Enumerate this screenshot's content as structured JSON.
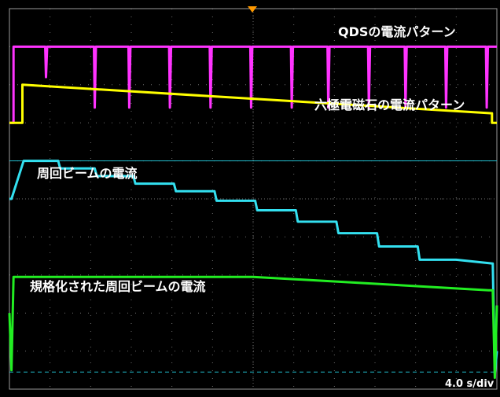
{
  "chart_data": {
    "type": "line",
    "scale_text": "4.0 s/div",
    "grid": true,
    "divisions": {
      "x": 12,
      "y": 10
    },
    "colors": {
      "background": "#000000",
      "grid": "#6e6e6e",
      "frame": "#9a9a9a",
      "trigger": "#ff9900",
      "qds": "#ff33ff",
      "hexapole": "#ffff00",
      "beam": "#33e0f0",
      "normalized": "#22ee22",
      "cursor": "#20b8c8"
    },
    "annotations": [
      {
        "id": "qds",
        "text": "QDSの電流パターン"
      },
      {
        "id": "hexapole",
        "text": "六極電磁石の電流パターン"
      },
      {
        "id": "beam",
        "text": "周回ビームの電流"
      },
      {
        "id": "normalized",
        "text": "規格化された周回ビームの電流"
      }
    ],
    "series": [
      {
        "id": "qds",
        "x": [
          0.0,
          0.1,
          0.1,
          12.0
        ],
        "y": [
          9.0,
          9.0,
          9.0,
          9.0
        ],
        "dips": [
          0.9,
          2.1,
          2.95,
          3.95,
          4.95,
          5.95,
          6.95,
          7.85,
          8.85,
          9.75,
          10.75,
          11.75
        ],
        "dip_depth": [
          8.2,
          7.4,
          7.4,
          7.4,
          7.4,
          7.4,
          7.4,
          7.4,
          7.4,
          7.4,
          7.4,
          7.4
        ]
      },
      {
        "id": "hexapole",
        "x": [
          0.0,
          0.32,
          0.32,
          11.88,
          11.88,
          12.0
        ],
        "y": [
          7.0,
          7.0,
          8.0,
          7.25,
          7.0,
          7.0
        ]
      },
      {
        "id": "beam",
        "x": [
          0.0,
          0.05,
          0.35,
          1.2,
          1.25,
          2.1,
          2.15,
          3.05,
          3.1,
          4.05,
          4.1,
          5.05,
          5.1,
          6.05,
          6.1,
          7.05,
          7.1,
          8.05,
          8.1,
          9.05,
          9.1,
          10.05,
          10.1,
          11.0,
          11.9,
          11.95,
          12.0
        ],
        "y": [
          5.0,
          5.0,
          6.0,
          6.0,
          5.8,
          5.8,
          5.6,
          5.6,
          5.4,
          5.4,
          5.2,
          5.2,
          4.95,
          4.95,
          4.7,
          4.7,
          4.4,
          4.4,
          4.1,
          4.1,
          3.75,
          3.75,
          3.4,
          3.4,
          3.3,
          0.4,
          1.0
        ]
      },
      {
        "id": "normalized",
        "x": [
          0.0,
          0.05,
          0.1,
          6.0,
          11.8,
          11.9,
          11.95,
          12.0
        ],
        "y": [
          2.0,
          0.5,
          2.95,
          2.95,
          2.6,
          2.6,
          0.3,
          2.2
        ]
      }
    ],
    "cursor_lines": [
      {
        "y": 6.0,
        "style": "solid"
      },
      {
        "y": 0.45,
        "style": "dashed"
      }
    ],
    "trigger_x": 6.0
  }
}
